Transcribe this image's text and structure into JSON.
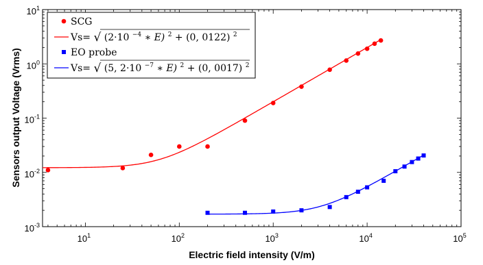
{
  "chart_data": {
    "type": "scatter",
    "title": "",
    "xlabel": "Electric field intensity (V/m)",
    "ylabel": "Sensors output Voltage (Vrms)",
    "xscale": "log",
    "yscale": "log",
    "xlim": [
      3.5,
      100000
    ],
    "ylim": [
      0.001,
      10
    ],
    "grid": false,
    "legend_position": "top-left",
    "x_tick_labels": [
      {
        "base": "10",
        "exp": "1"
      },
      {
        "base": "10",
        "exp": "2"
      },
      {
        "base": "10",
        "exp": "3"
      },
      {
        "base": "10",
        "exp": "4"
      },
      {
        "base": "10",
        "exp": "5"
      }
    ],
    "y_tick_labels": [
      {
        "base": "10",
        "exp": "-3"
      },
      {
        "base": "10",
        "exp": "-2"
      },
      {
        "base": "10",
        "exp": "-1"
      },
      {
        "base": "10",
        "exp": "0"
      },
      {
        "base": "10",
        "exp": "1"
      }
    ],
    "series": [
      {
        "name": "SCG",
        "marker": "circle",
        "color": "#ff0000",
        "x": [
          4,
          25,
          50,
          100,
          200,
          500,
          1000,
          2000,
          4000,
          6000,
          8000,
          10000,
          12000,
          14000
        ],
        "y": [
          0.011,
          0.012,
          0.021,
          0.03,
          0.03,
          0.09,
          0.19,
          0.38,
          0.78,
          1.15,
          1.55,
          1.9,
          2.35,
          2.7
        ]
      },
      {
        "name": "EO probe",
        "marker": "square",
        "color": "#0000ff",
        "x": [
          200,
          500,
          1000,
          2000,
          4000,
          6000,
          8000,
          10000,
          15000,
          20000,
          25000,
          30000,
          35000,
          40000
        ],
        "y": [
          0.0018,
          0.0018,
          0.0019,
          0.002,
          0.0023,
          0.0035,
          0.0044,
          0.0053,
          0.007,
          0.0105,
          0.0128,
          0.0155,
          0.018,
          0.0205
        ]
      }
    ],
    "fits": [
      {
        "label": "Vs=",
        "color": "#ff0000",
        "coef": 0.0002,
        "offset": 0.0122,
        "x_range": [
          3.5,
          14000
        ],
        "formula_parts": {
          "a": "(2·10",
          "a_exp": "−4",
          "b": " ∗ E)",
          "b_exp": "2",
          "c": " + (0, 0122)",
          "c_exp": "2"
        }
      },
      {
        "label": "Vs=",
        "color": "#0000ff",
        "coef": 5.2e-07,
        "offset": 0.0017,
        "x_range": [
          200,
          40000
        ],
        "formula_parts": {
          "a": "(5, 2·10",
          "a_exp": "−7",
          "b": " ∗ E)",
          "b_exp": "2",
          "c": " + (0, 0017)",
          "c_exp": "2"
        }
      }
    ]
  }
}
